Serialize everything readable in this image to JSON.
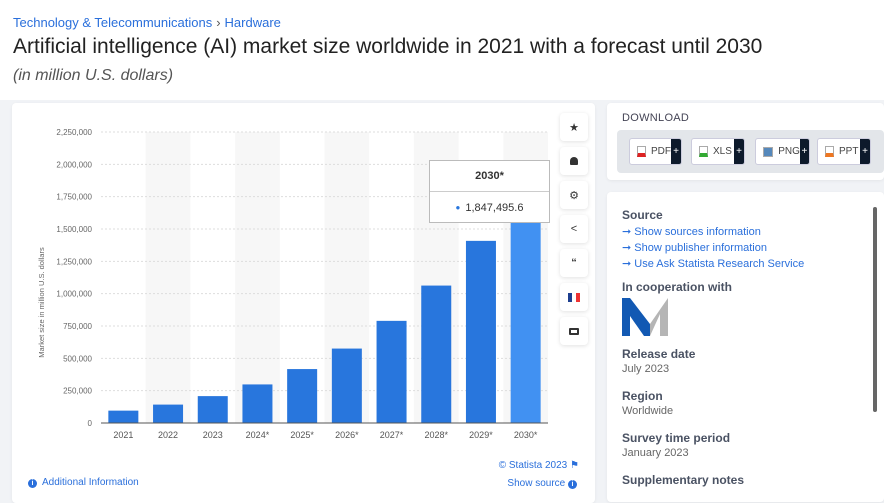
{
  "breadcrumb": [
    "Technology & Telecommunications",
    "Hardware"
  ],
  "title": "Artificial intelligence (AI) market size worldwide in 2021 with a forecast until 2030",
  "subtitle": "(in million U.S. dollars)",
  "chart_data": {
    "type": "bar",
    "categories": [
      "2021",
      "2022",
      "2023",
      "2024*",
      "2025*",
      "2026*",
      "2027*",
      "2028*",
      "2029*",
      "2030*"
    ],
    "values": [
      95600,
      142300,
      207900,
      298250,
      417000,
      575500,
      789800,
      1062600,
      1408300,
      1847495.6
    ],
    "ylabel": "Market size in million U.S. dollars",
    "ylim": [
      0,
      2250000
    ],
    "yticks": [
      "0",
      "250,000",
      "500,000",
      "750,000",
      "1,000,000",
      "1,250,000",
      "1,500,000",
      "1,750,000",
      "2,000,000",
      "2,250,000"
    ],
    "grid": true,
    "bar_color": "#2876dd",
    "highlight_color": "#4191f2",
    "tooltip": {
      "category": "2030*",
      "value": "1,847,495.6"
    }
  },
  "tools": [
    "star-icon",
    "bell-icon",
    "gear-icon",
    "share-icon",
    "quote-icon",
    "french-flag-icon",
    "print-icon"
  ],
  "credit": "© Statista 2023",
  "show_source": "Show source",
  "additional_info": "Additional Information",
  "download": {
    "title": "DOWNLOAD",
    "buttons": [
      "PDF",
      "XLS",
      "PNG",
      "PPT"
    ],
    "plus": "+"
  },
  "info": {
    "source_title": "Source",
    "source_links": [
      "Show sources information",
      "Show publisher information",
      "Use Ask Statista Research Service"
    ],
    "cooperation_title": "In cooperation with",
    "release_title": "Release date",
    "release": "July 2023",
    "region_title": "Region",
    "region": "Worldwide",
    "period_title": "Survey time period",
    "period": "January 2023",
    "notes_title": "Supplementary notes"
  }
}
